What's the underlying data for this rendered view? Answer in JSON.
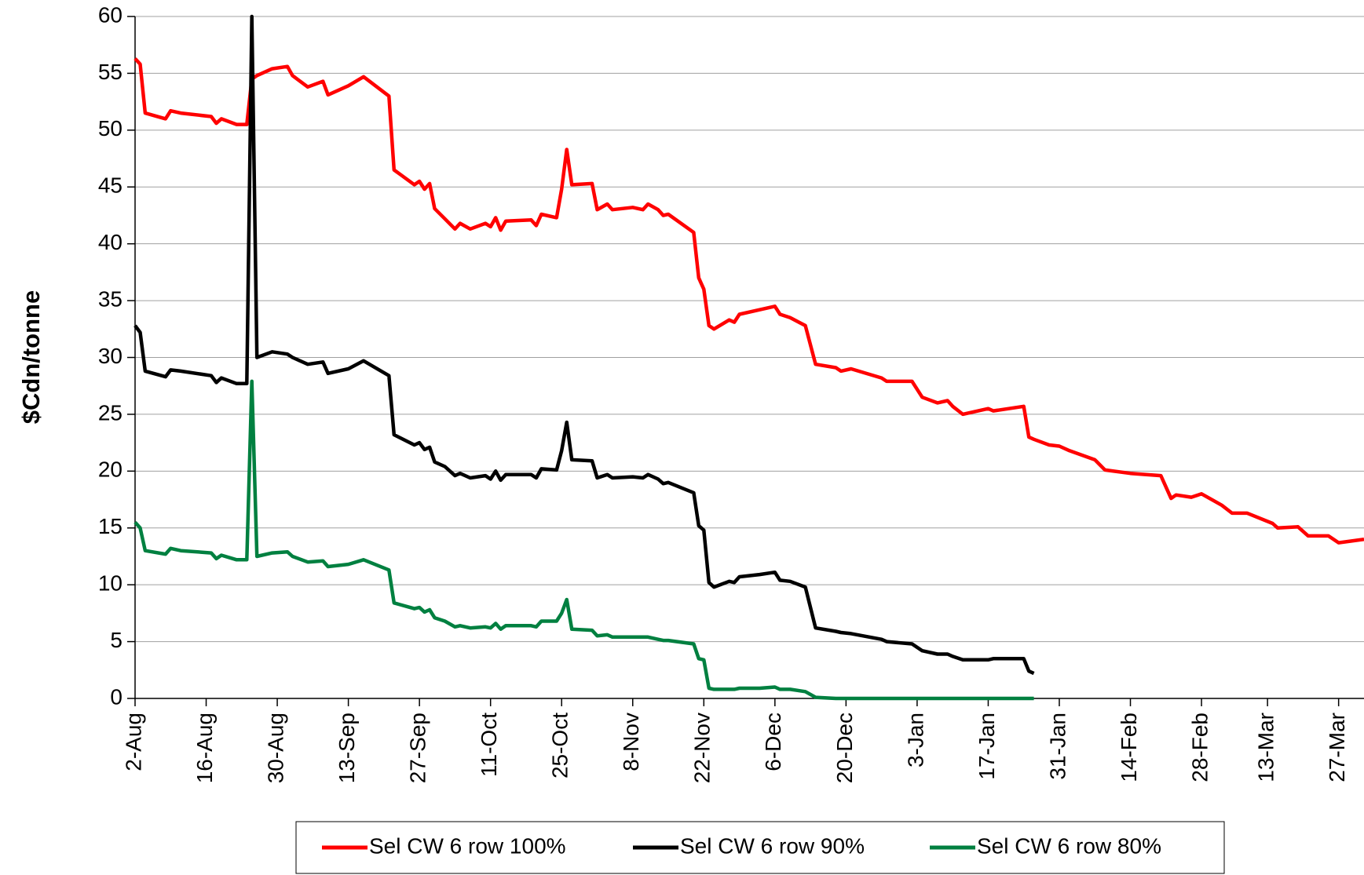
{
  "chart_data": {
    "type": "line",
    "ylabel": "$Cdn/tonne",
    "x": [
      "2-Aug",
      "3-Aug",
      "4-Aug",
      "8-Aug",
      "9-Aug",
      "11-Aug",
      "17-Aug",
      "18-Aug",
      "19-Aug",
      "22-Aug",
      "24-Aug",
      "25-Aug",
      "26-Aug",
      "29-Aug",
      "1-Sep",
      "2-Sep",
      "5-Sep",
      "8-Sep",
      "9-Sep",
      "13-Sep",
      "16-Sep",
      "21-Sep",
      "22-Sep",
      "26-Sep",
      "27-Sep",
      "28-Sep",
      "29-Sep",
      "30-Sep",
      "2-Oct",
      "4-Oct",
      "5-Oct",
      "7-Oct",
      "10-Oct",
      "11-Oct",
      "12-Oct",
      "13-Oct",
      "14-Oct",
      "19-Oct",
      "20-Oct",
      "21-Oct",
      "24-Oct",
      "25-Oct",
      "26-Oct",
      "27-Oct",
      "31-Oct",
      "1-Nov",
      "3-Nov",
      "4-Nov",
      "8-Nov",
      "10-Nov",
      "11-Nov",
      "13-Nov",
      "14-Nov",
      "15-Nov",
      "20-Nov",
      "21-Nov",
      "22-Nov",
      "23-Nov",
      "24-Nov",
      "27-Nov",
      "28-Nov",
      "29-Nov",
      "3-Dec",
      "6-Dec",
      "7-Dec",
      "9-Dec",
      "12-Dec",
      "14-Dec",
      "18-Dec",
      "19-Dec",
      "21-Dec",
      "27-Dec",
      "28-Dec",
      "2-Jan",
      "4-Jan",
      "7-Jan",
      "9-Jan",
      "10-Jan",
      "12-Jan",
      "17-Jan",
      "18-Jan",
      "24-Jan",
      "25-Jan",
      "26-Jan",
      "29-Jan",
      "31-Jan",
      "2-Feb",
      "7-Feb",
      "9-Feb",
      "14-Feb",
      "20-Feb",
      "22-Feb",
      "23-Feb",
      "26-Feb",
      "28-Feb",
      "4-Mar",
      "6-Mar",
      "9-Mar",
      "14-Mar",
      "15-Mar",
      "19-Mar",
      "21-Mar",
      "25-Mar",
      "27-Mar",
      "1-Apr"
    ],
    "series": [
      {
        "name": "Sel CW 6 row 100%",
        "color": "#ff0000",
        "values": [
          56.3,
          55.8,
          51.5,
          51,
          51.7,
          51.5,
          51.2,
          50.6,
          51,
          50.5,
          50.5,
          54.5,
          54.8,
          55.4,
          55.6,
          54.8,
          53.8,
          54.3,
          53.1,
          53.9,
          54.7,
          53,
          46.5,
          45.2,
          45.5,
          44.8,
          45.3,
          43.1,
          42.2,
          41.3,
          41.8,
          41.3,
          41.8,
          41.5,
          42.3,
          41.2,
          42,
          42.1,
          41.6,
          42.6,
          42.3,
          44.8,
          48.3,
          45.2,
          45.3,
          43,
          43.5,
          43,
          43.2,
          43,
          43.5,
          43,
          42.5,
          42.6,
          41,
          37,
          36,
          32.8,
          32.5,
          33.3,
          33.1,
          33.8,
          34.2,
          34.5,
          33.8,
          33.5,
          32.8,
          29.4,
          29.1,
          28.8,
          29,
          28.2,
          27.9,
          27.9,
          26.5,
          26,
          26.2,
          25.7,
          25,
          25.5,
          25.3,
          25.7,
          23,
          22.8,
          22.3,
          22.2,
          21.8,
          21,
          20.1,
          19.8,
          19.6,
          17.6,
          17.9,
          17.7,
          18,
          17,
          16.3,
          16.3,
          15.4,
          15,
          15.1,
          14.3,
          14.3,
          13.7,
          14
        ]
      },
      {
        "name": "Sel CW 6 row 90%",
        "color": "#000000",
        "values": [
          32.8,
          32.2,
          28.8,
          28.3,
          28.9,
          28.8,
          28.4,
          27.8,
          28.2,
          27.7,
          27.7,
          60,
          30,
          30.5,
          30.3,
          30,
          29.4,
          29.6,
          28.6,
          29,
          29.7,
          28.4,
          23.2,
          22.3,
          22.5,
          21.9,
          22.1,
          20.8,
          20.4,
          19.6,
          19.8,
          19.4,
          19.6,
          19.3,
          20,
          19.2,
          19.7,
          19.7,
          19.4,
          20.2,
          20.1,
          21.8,
          24.3,
          21,
          20.9,
          19.4,
          19.7,
          19.4,
          19.5,
          19.4,
          19.7,
          19.3,
          18.9,
          19,
          18.1,
          15.2,
          14.8,
          10.2,
          9.8,
          10.3,
          10.2,
          10.7,
          10.9,
          11.1,
          10.4,
          10.3,
          9.8,
          6.2,
          5.9,
          5.8,
          5.7,
          5.2,
          5,
          4.8,
          4.2,
          3.9,
          3.9,
          3.7,
          3.4,
          3.4,
          3.5,
          3.5,
          2.4,
          2.2,
          null,
          null,
          null,
          null,
          null,
          null,
          null,
          null,
          null,
          null,
          null,
          null,
          null,
          null,
          null,
          null,
          null,
          null,
          null,
          null,
          null
        ]
      },
      {
        "name": "Sel CW 6 row 80%",
        "color": "#008040",
        "values": [
          15.5,
          15,
          13,
          12.7,
          13.2,
          13,
          12.8,
          12.3,
          12.6,
          12.2,
          12.2,
          27.9,
          12.5,
          12.8,
          12.9,
          12.5,
          12,
          12.1,
          11.6,
          11.8,
          12.2,
          11.3,
          8.4,
          7.9,
          8,
          7.6,
          7.8,
          7.1,
          6.8,
          6.3,
          6.4,
          6.2,
          6.3,
          6.2,
          6.6,
          6.1,
          6.4,
          6.4,
          6.3,
          6.8,
          6.8,
          7.5,
          8.7,
          6.1,
          6,
          5.5,
          5.6,
          5.4,
          5.4,
          5.4,
          5.4,
          5.2,
          5.1,
          5.1,
          4.8,
          3.5,
          3.4,
          0.9,
          0.8,
          0.8,
          0.8,
          0.9,
          0.9,
          1,
          0.8,
          0.8,
          0.6,
          0.1,
          0,
          0,
          0,
          0,
          0,
          0,
          0,
          0,
          0,
          0,
          0,
          0,
          0,
          0,
          0,
          0,
          null,
          null,
          null,
          null,
          null,
          null,
          null,
          null,
          null,
          null,
          null,
          null,
          null,
          null,
          null,
          null,
          null,
          null,
          null,
          null,
          null
        ]
      }
    ],
    "xlim": [
      "2-Aug",
      "1-Apr"
    ],
    "xticks": [
      "2-Aug",
      "16-Aug",
      "30-Aug",
      "13-Sep",
      "27-Sep",
      "11-Oct",
      "25-Oct",
      "8-Nov",
      "22-Nov",
      "6-Dec",
      "20-Dec",
      "3-Jan",
      "17-Jan",
      "31-Jan",
      "14-Feb",
      "28-Feb",
      "13-Mar",
      "27-Mar"
    ],
    "ylim": [
      0,
      60
    ],
    "yticks": [
      0,
      5,
      10,
      15,
      20,
      25,
      30,
      35,
      40,
      45,
      50,
      55,
      60
    ],
    "grid": true,
    "legend": "bottom"
  }
}
